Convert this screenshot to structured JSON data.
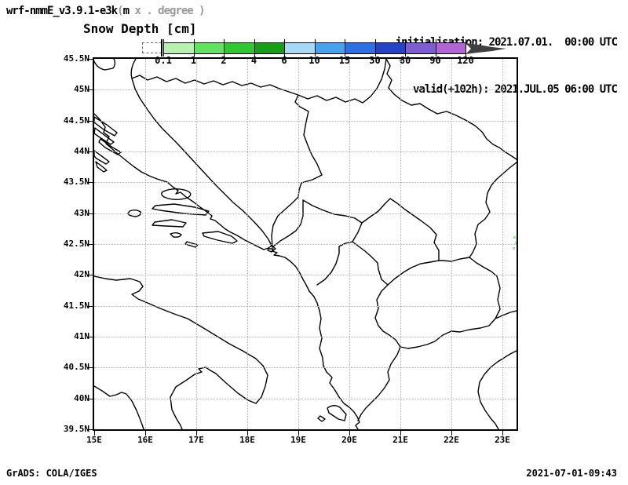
{
  "header": {
    "model_name_black": "wrf-nmmE_v3.9.1-e3k",
    "model_paren": "(",
    "model_suffix": "m",
    "model_units_gray": " x . degree )",
    "init_line": "initialisation: 2021.07.01.  00:00 UTC",
    "valid_line": "valid(+102h): 2021.JUL.05 06:00 UTC",
    "plot_title": "Snow Depth [cm]"
  },
  "legend": {
    "boundary_labels": [
      "0.1",
      "1",
      "2",
      "4",
      "6",
      "10",
      "15",
      "30",
      "60",
      "90",
      "120"
    ],
    "segment_colors": [
      "#b7f0b0",
      "#61e361",
      "#2fc82f",
      "#169e16",
      "#a5d9f5",
      "#47a3f0",
      "#2b71e3",
      "#2343c8",
      "#7d5ed2",
      "#b263d6"
    ],
    "overflow_arrow_color": "#3f3f3f"
  },
  "map": {
    "x_tick_labels": [
      "15E",
      "16E",
      "17E",
      "18E",
      "19E",
      "20E",
      "21E",
      "22E",
      "23E"
    ],
    "y_tick_labels": [
      "45.5N",
      "45N",
      "44.5N",
      "44N",
      "43.5N",
      "43N",
      "42.5N",
      "42N",
      "41.5N",
      "41N",
      "40.5N",
      "40N",
      "39.5N"
    ],
    "gridline_color": "#b0b0b0",
    "coastline_color": "#000000",
    "snow_patch_color": "#9ae89a"
  },
  "footer": {
    "left": "GrADS: COLA/IGES",
    "right": "2021-07-01-09:43"
  }
}
